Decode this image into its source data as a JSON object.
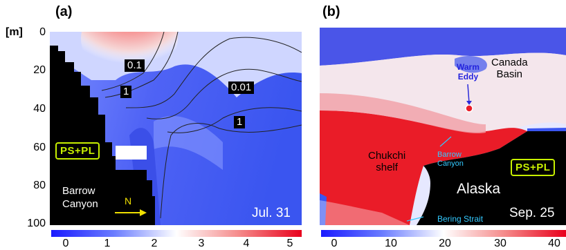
{
  "panel_a": {
    "label": "(a)",
    "y_unit": "[m]",
    "y_ticks": [
      "0",
      "20",
      "40",
      "60",
      "80",
      "100"
    ],
    "contour_labels": [
      "0.1",
      "1",
      "0.01",
      "1"
    ],
    "region_badge": "PS+PL",
    "place_label_line1": "Barrow",
    "place_label_line2": "Canyon",
    "arrow_label": "N",
    "date": "Jul. 31",
    "colorbar_ticks": [
      "0",
      "1",
      "2",
      "3",
      "4",
      "5"
    ],
    "colorbar_colors": {
      "low": "#1a1aff",
      "mid": "#ffffff",
      "high": "#e8001c"
    }
  },
  "panel_b": {
    "label": "(b)",
    "eddy_label_line1": "Warm",
    "eddy_label_line2": "Eddy",
    "basin_label_line1": "Canada",
    "basin_label_line2": "Basin",
    "shelf_label_line1": "Chukchi",
    "shelf_label_line2": "shelf",
    "canyon_label_line1": "Barrow",
    "canyon_label_line2": "Canyon",
    "region_badge": "PS+PL",
    "land_label": "Alaska",
    "strait_label": "Bering Strait",
    "date": "Sep. 25",
    "colorbar_ticks": [
      "0",
      "10",
      "20",
      "30",
      "40"
    ]
  }
}
